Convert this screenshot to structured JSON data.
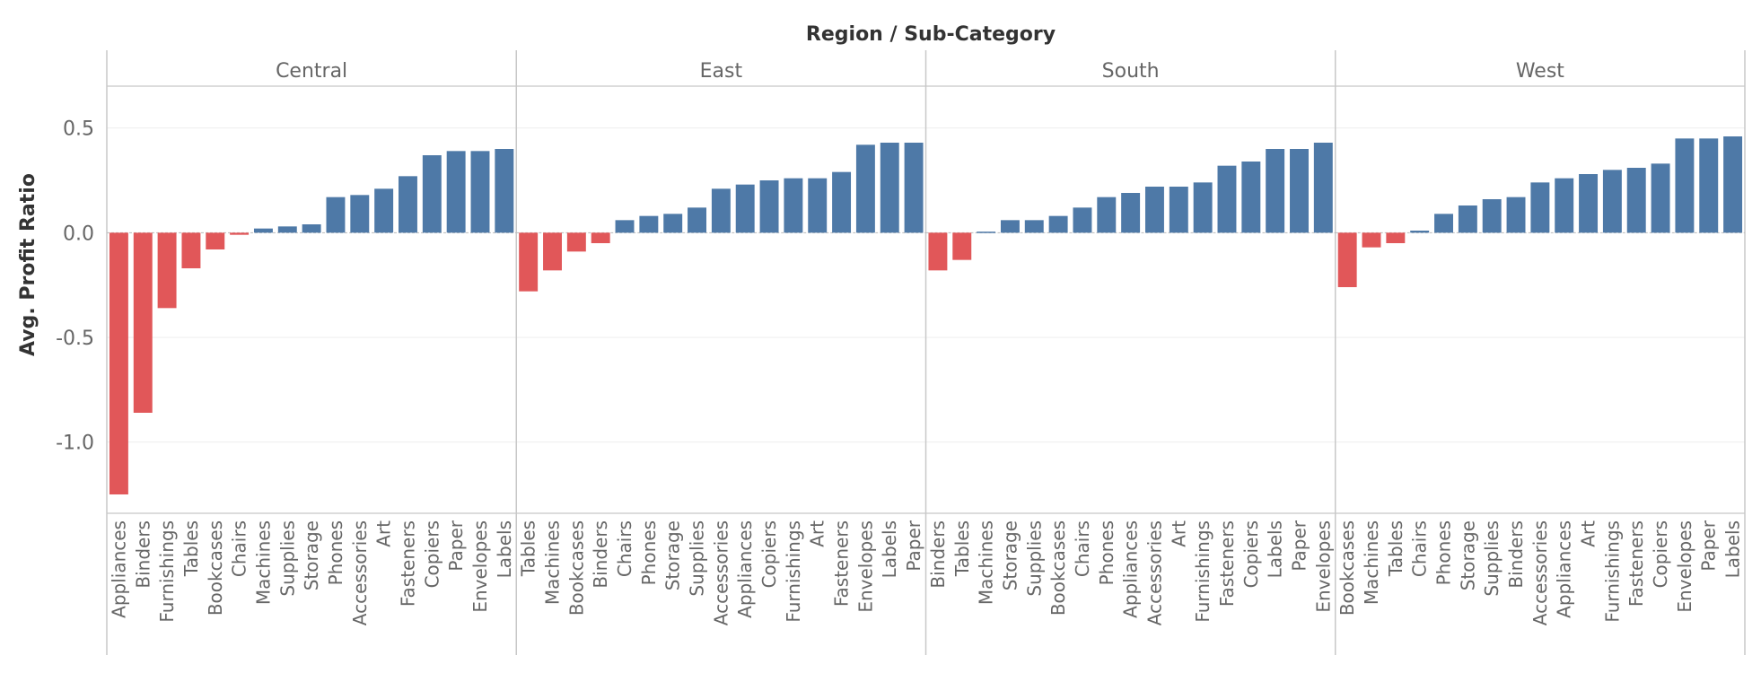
{
  "chart_data": {
    "type": "bar",
    "title": "Region / Sub-Category",
    "ylabel": "Avg. Profit Ratio",
    "xlabel": "",
    "ylim": [
      -1.34,
      0.7
    ],
    "yticks": [
      0.5,
      0.0,
      -0.5,
      -1.0
    ],
    "ytick_labels": [
      "0.5",
      "0.0",
      "-0.5",
      "-1.0"
    ],
    "grid": true,
    "colors": {
      "positive": "#4e79a7",
      "negative": "#e15759"
    },
    "panels": [
      {
        "name": "Central",
        "categories": [
          "Appliances",
          "Binders",
          "Furnishings",
          "Tables",
          "Bookcases",
          "Chairs",
          "Machines",
          "Supplies",
          "Storage",
          "Phones",
          "Accessories",
          "Art",
          "Fasteners",
          "Copiers",
          "Paper",
          "Envelopes",
          "Labels"
        ],
        "values": [
          -1.25,
          -0.86,
          -0.36,
          -0.17,
          -0.08,
          -0.01,
          0.02,
          0.03,
          0.04,
          0.17,
          0.18,
          0.21,
          0.27,
          0.37,
          0.39,
          0.39,
          0.4
        ]
      },
      {
        "name": "East",
        "categories": [
          "Tables",
          "Machines",
          "Bookcases",
          "Binders",
          "Chairs",
          "Phones",
          "Storage",
          "Supplies",
          "Accessories",
          "Appliances",
          "Copiers",
          "Furnishings",
          "Art",
          "Fasteners",
          "Envelopes",
          "Labels",
          "Paper"
        ],
        "values": [
          -0.28,
          -0.18,
          -0.09,
          -0.05,
          0.06,
          0.08,
          0.09,
          0.12,
          0.21,
          0.23,
          0.25,
          0.26,
          0.26,
          0.29,
          0.42,
          0.43,
          0.43
        ]
      },
      {
        "name": "South",
        "categories": [
          "Binders",
          "Tables",
          "Machines",
          "Storage",
          "Supplies",
          "Bookcases",
          "Chairs",
          "Phones",
          "Appliances",
          "Accessories",
          "Art",
          "Furnishings",
          "Fasteners",
          "Copiers",
          "Labels",
          "Paper",
          "Envelopes"
        ],
        "values": [
          -0.18,
          -0.13,
          0.005,
          0.06,
          0.06,
          0.08,
          0.12,
          0.17,
          0.19,
          0.22,
          0.22,
          0.24,
          0.32,
          0.34,
          0.4,
          0.4,
          0.43
        ]
      },
      {
        "name": "West",
        "categories": [
          "Bookcases",
          "Machines",
          "Tables",
          "Chairs",
          "Phones",
          "Storage",
          "Supplies",
          "Binders",
          "Accessories",
          "Appliances",
          "Art",
          "Furnishings",
          "Fasteners",
          "Copiers",
          "Envelopes",
          "Paper",
          "Labels"
        ],
        "values": [
          -0.26,
          -0.07,
          -0.05,
          0.01,
          0.09,
          0.13,
          0.16,
          0.17,
          0.24,
          0.26,
          0.28,
          0.3,
          0.31,
          0.33,
          0.45,
          0.45,
          0.46
        ]
      }
    ]
  }
}
